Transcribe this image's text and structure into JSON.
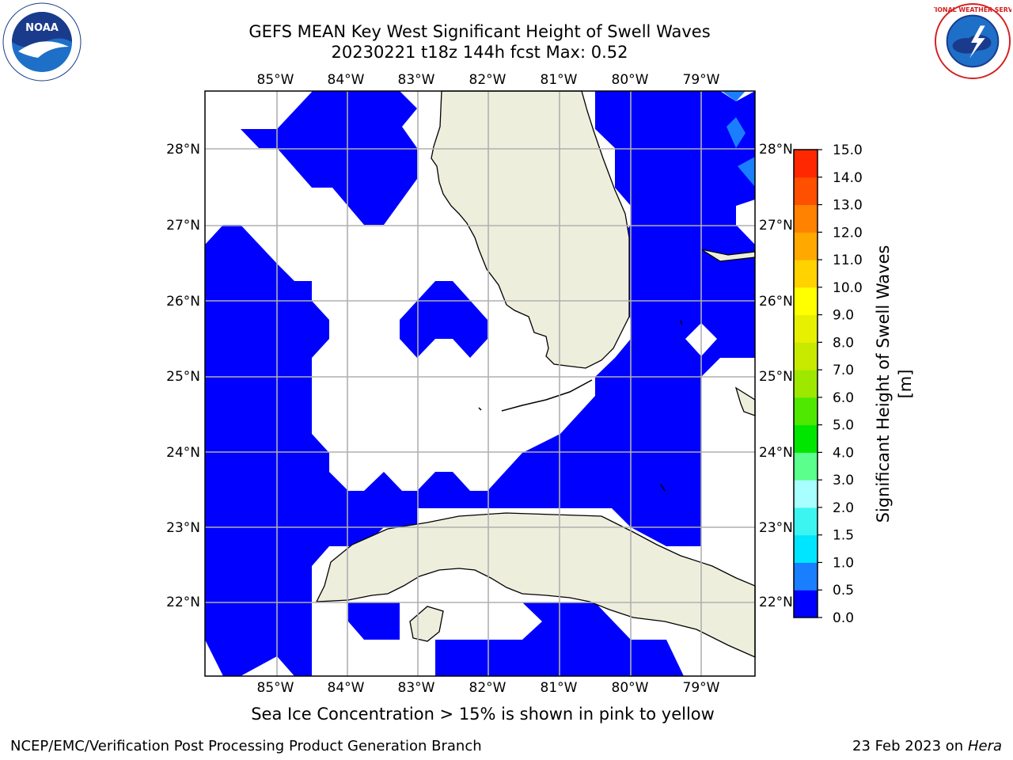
{
  "title": {
    "line1": "GEFS MEAN Key West Significant Height of Swell Waves",
    "line2": "20230221 t18z 144h fcst   Max: 0.52"
  },
  "map": {
    "lon_labels": [
      "85°W",
      "84°W",
      "83°W",
      "82°W",
      "81°W",
      "80°W",
      "79°W"
    ],
    "lat_labels": [
      "28°N",
      "27°N",
      "26°N",
      "25°N",
      "24°N",
      "23°N",
      "22°N"
    ],
    "lon_range": [
      -85.99,
      -78.28
    ],
    "lat_range": [
      21.0,
      28.78
    ],
    "colors": {
      "ocean_fill": "#0000ff",
      "land_fill": "#eeeedd",
      "grid": "#b0b0b0"
    }
  },
  "colorbar": {
    "label": "Significant Height of Swell Waves [m]",
    "ticks": [
      "0.0",
      "0.5",
      "1.0",
      "1.5",
      "2.0",
      "3.0",
      "4.0",
      "5.0",
      "6.0",
      "7.0",
      "8.0",
      "9.0",
      "10.0",
      "11.0",
      "12.0",
      "13.0",
      "14.0",
      "15.0"
    ],
    "colors": [
      "#0000ff",
      "#1a7fff",
      "#00e5ff",
      "#3cf5f0",
      "#a8ffff",
      "#5aff8c",
      "#00e600",
      "#4ee800",
      "#9ee800",
      "#c8ea00",
      "#e6f000",
      "#ffff00",
      "#ffd200",
      "#ffa800",
      "#ff8200",
      "#ff5000",
      "#ff2800",
      "#ff0000"
    ]
  },
  "note": "Sea Ice Concentration > 15% is shown in pink to yellow",
  "footer": {
    "left": "NCEP/EMC/Verification Post Processing Product Generation Branch",
    "date": "23 Feb 2023 on",
    "system": "Hera"
  },
  "logos": {
    "noaa": "NOAA",
    "nws": "NATIONAL WEATHER SERVICE"
  }
}
